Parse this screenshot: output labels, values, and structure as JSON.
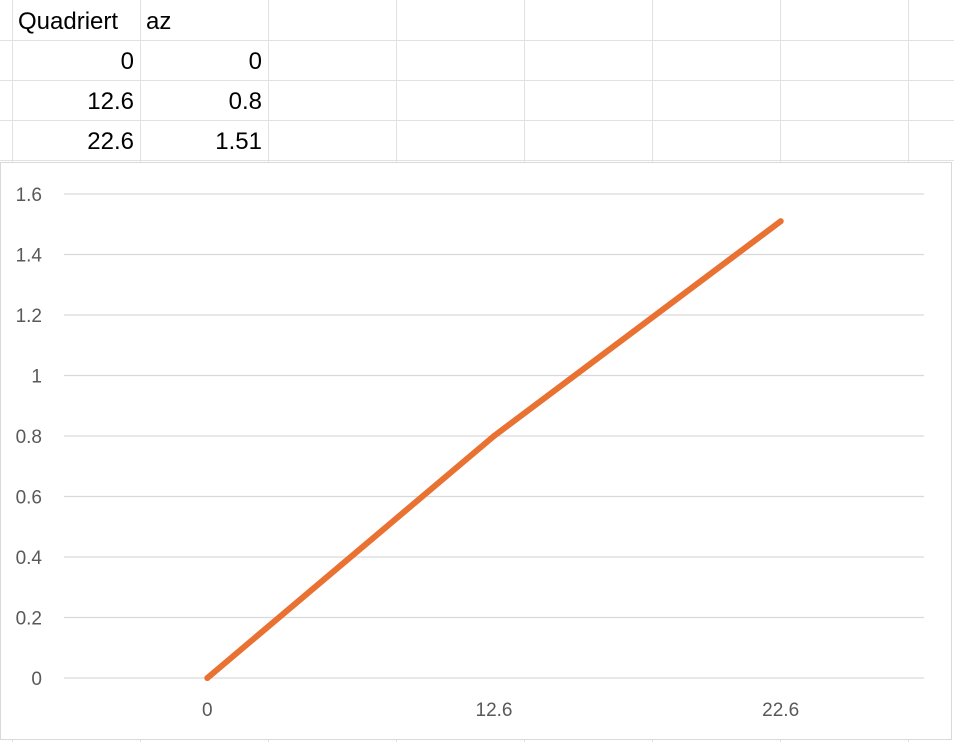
{
  "table": {
    "headers": [
      "Quadriert",
      "az"
    ],
    "rows": [
      [
        "0",
        "0"
      ],
      [
        "12.6",
        "0.8"
      ],
      [
        "22.6",
        "1.51"
      ]
    ]
  },
  "colors": {
    "series": "#E97132",
    "gridline": "#d9d9d9",
    "tick_text": "#595959"
  },
  "chart_data": {
    "type": "line",
    "categories": [
      "0",
      "12.6",
      "22.6"
    ],
    "series": [
      {
        "values": [
          0,
          0.8,
          1.51
        ]
      }
    ],
    "title": "",
    "xlabel": "",
    "ylabel": "",
    "ylim": [
      0,
      1.6
    ],
    "yticks": [
      "0",
      "0.2",
      "0.4",
      "0.6",
      "0.8",
      "1",
      "1.2",
      "1.4",
      "1.6"
    ],
    "grid": "horizontal",
    "legend": "none"
  }
}
